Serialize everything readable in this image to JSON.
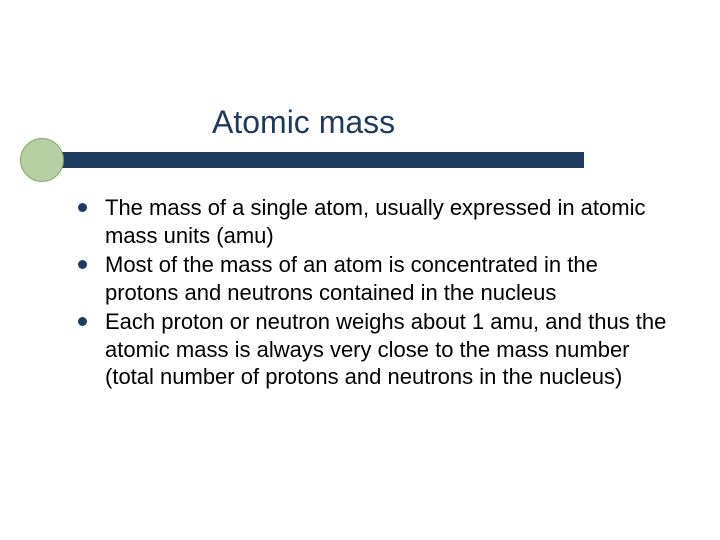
{
  "slide": {
    "title": "Atomic mass",
    "title_color": "#1f3a5f",
    "title_fontsize": 32,
    "bar_color": "#1f3a5f",
    "circle_fill": "#b6d0a4",
    "circle_border": "#7fa26e",
    "bullet_dot_color": "#1f3a5f",
    "bullet_fontsize": 22,
    "bullet_text_color": "#000000",
    "background_color": "#ffffff",
    "bullets": [
      "The mass of a single atom, usually expressed in atomic mass units (amu)",
      "Most of the mass of an atom is concentrated in the protons and neutrons contained in the nucleus",
      "Each proton or neutron weighs about 1 amu, and thus the atomic mass is always very close to the mass number (total number of protons and neutrons in the nucleus)"
    ]
  }
}
